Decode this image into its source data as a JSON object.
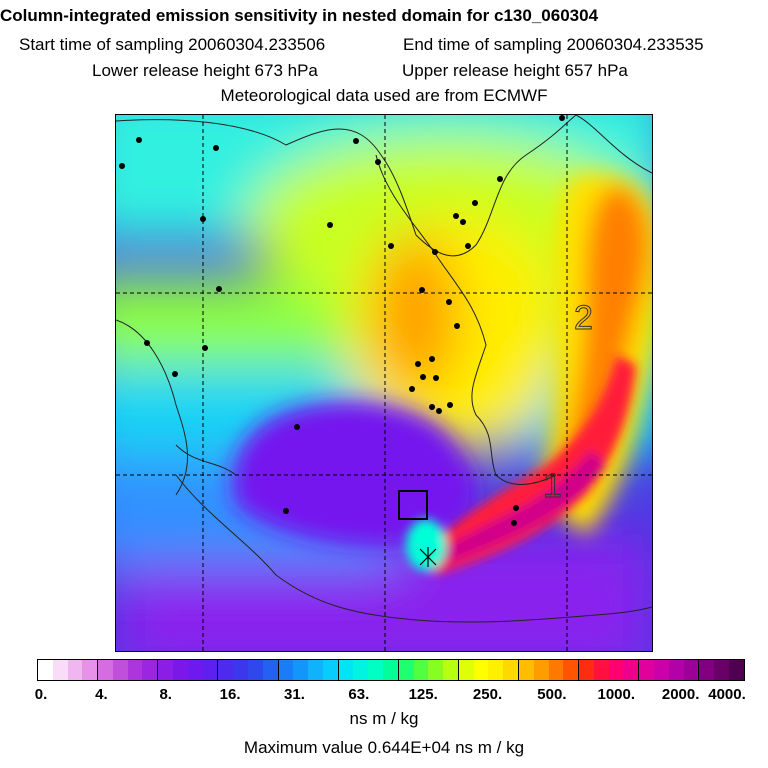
{
  "header": {
    "title": "Column-integrated emission sensitivity in nested domain for c130_060304",
    "start_label": "Start time of sampling 20060304.233506",
    "end_label": "End time of sampling 20060304.233535",
    "lower_label": "Lower release height  673 hPa",
    "upper_label": "Upper release height  657 hPa",
    "met_label": "Meteorological data used are from ECMWF"
  },
  "map": {
    "region_labels": [
      "2",
      "1"
    ],
    "gradient_colors": [
      "#3a3ad8",
      "#7f16ee",
      "#1fa8ff",
      "#00ffe0",
      "#8dff3c",
      "#ffff00",
      "#ff9a00",
      "#ff1a1a",
      "#d4006e"
    ]
  },
  "colorbar": {
    "tick_labels": [
      "0.",
      "4.",
      "8.",
      "16.",
      "31.",
      "63.",
      "125.",
      "250.",
      "500.",
      "1000.",
      "2000.",
      "4000."
    ],
    "colors": [
      "#ffffff",
      "#f8dcf8",
      "#efb6ef",
      "#e592e8",
      "#d46ee0",
      "#c050dc",
      "#ac36dc",
      "#9a26e0",
      "#8a1ee6",
      "#7a18ea",
      "#6e1aee",
      "#5e20ee",
      "#4e2aee",
      "#3c36ec",
      "#2e48ee",
      "#2460f2",
      "#1a7cf6",
      "#1296fa",
      "#10b2fc",
      "#08ccfc",
      "#00e4f6",
      "#00f4e0",
      "#00ffc4",
      "#00ff9a",
      "#20ff6e",
      "#50ff40",
      "#86ff20",
      "#b6ff10",
      "#deff06",
      "#ffff00",
      "#fff000",
      "#ffd800",
      "#ffbc00",
      "#ff9c00",
      "#ff7800",
      "#ff5400",
      "#ff2c10",
      "#ff1040",
      "#ff0070",
      "#f0008a",
      "#e0009c",
      "#cc00a8",
      "#b400a8",
      "#9c0098",
      "#820080",
      "#680068",
      "#500050"
    ],
    "unit_label": "ns m / kg",
    "max_label": "Maximum value  0.644E+04 ns m / kg"
  }
}
